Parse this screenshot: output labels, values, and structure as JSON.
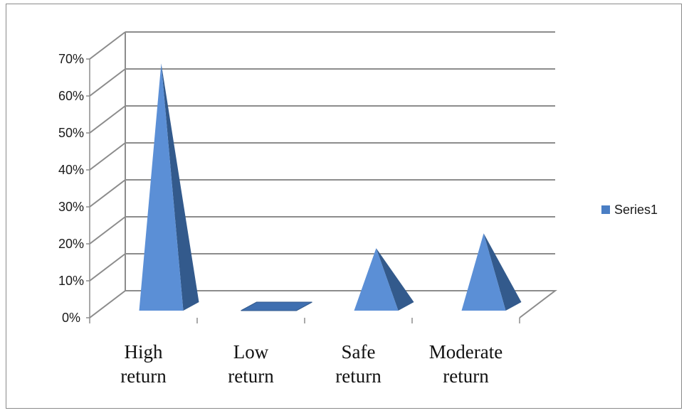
{
  "chart_data": {
    "type": "bar",
    "shape": "3d-pyramid",
    "categories": [
      [
        "High",
        "return"
      ],
      [
        "Low",
        "return"
      ],
      [
        "Safe",
        "return"
      ],
      [
        "Moderate",
        "return"
      ]
    ],
    "series": [
      {
        "name": "Series1",
        "values": [
          0.66,
          0.0,
          0.16,
          0.2
        ]
      }
    ],
    "yticks": [
      "0%",
      "10%",
      "20%",
      "30%",
      "40%",
      "50%",
      "60%",
      "70%"
    ],
    "ylim": [
      0,
      0.7
    ],
    "grid": true,
    "legend": "right",
    "title": "",
    "xlabel": "",
    "ylabel": ""
  },
  "colors": {
    "front_face": "#5b8fd6",
    "side_face": "#335a8c",
    "flat_top": "#3f6fb0",
    "gridline": "#8c8c8c",
    "axis": "#8c8c8c",
    "legend_swatch": "#4a7ec4"
  }
}
